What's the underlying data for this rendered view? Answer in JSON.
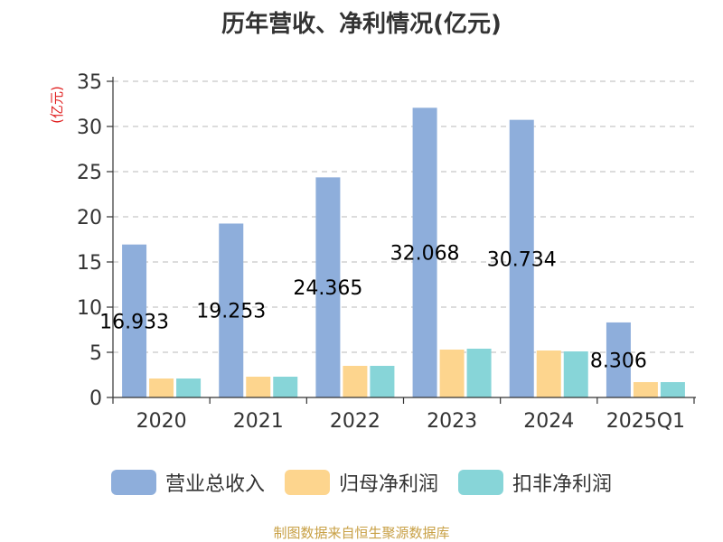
{
  "chart_data": {
    "type": "bar",
    "title": "历年营收、净利情况(亿元)",
    "ylabel": "(亿元)",
    "ylim": [
      0,
      35
    ],
    "yticks": [
      0,
      5,
      10,
      15,
      20,
      25,
      30,
      35
    ],
    "grid": true,
    "legend_position": "bottom",
    "categories": [
      "2020",
      "2021",
      "2022",
      "2023",
      "2024",
      "2025Q1"
    ],
    "series": [
      {
        "name": "营业总收入",
        "color": "#8eaedb",
        "values": [
          16.933,
          19.253,
          24.365,
          32.068,
          30.734,
          8.306
        ]
      },
      {
        "name": "归母净利润",
        "color": "#fdd58e",
        "values": [
          2.1,
          2.3,
          3.5,
          5.3,
          5.2,
          1.7
        ]
      },
      {
        "name": "扣非净利润",
        "color": "#87d5d8",
        "values": [
          2.1,
          2.3,
          3.5,
          5.4,
          5.1,
          1.7
        ]
      }
    ],
    "data_labels": [
      "16.933",
      "19.253",
      "24.365",
      "32.068",
      "30.734",
      "8.306"
    ]
  },
  "source": "制图数据来自恒生聚源数据库"
}
